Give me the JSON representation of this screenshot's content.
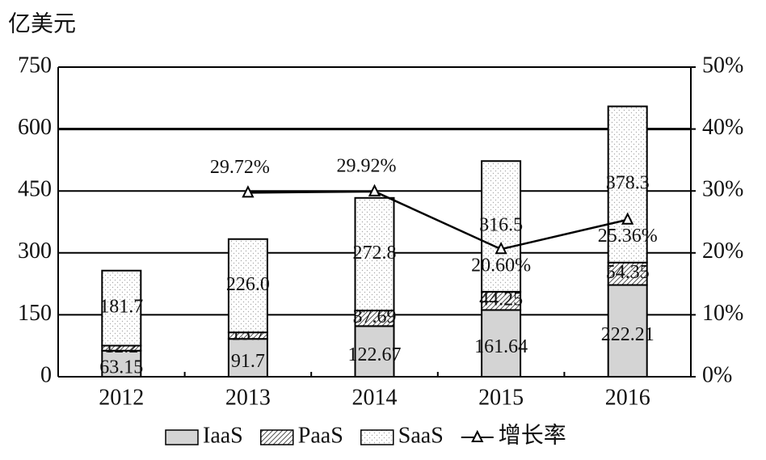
{
  "chart_data": {
    "type": "bar",
    "stacked": true,
    "y_label": "亿美元",
    "categories": [
      "2012",
      "2013",
      "2014",
      "2015",
      "2016"
    ],
    "series": [
      {
        "name": "IaaS",
        "color": "#d4d4d4",
        "pattern": "solid",
        "values": [
          63.15,
          91.7,
          122.67,
          161.64,
          222.21
        ]
      },
      {
        "name": "PaaS",
        "color": "#555555",
        "pattern": "hatch",
        "values": [
          12.2,
          15.7,
          37.69,
          44.25,
          54.35
        ]
      },
      {
        "name": "SaaS",
        "color": "#aaaaaa",
        "pattern": "dots",
        "values": [
          181.7,
          226.0,
          272.8,
          316.5,
          378.3
        ],
        "value_labels": [
          "181.7",
          "226.0",
          "272.8",
          "316.5",
          "378.3"
        ]
      },
      {
        "name": "增长率",
        "color": "#000000",
        "axis": "y2",
        "marker": "triangle",
        "values": [
          null,
          29.72,
          29.92,
          20.6,
          25.36
        ],
        "value_labels": [
          null,
          "29.72%",
          "29.92%",
          "20.60%",
          "25.36%"
        ]
      }
    ],
    "ylim": [
      0,
      750
    ],
    "yticks": [
      0,
      150,
      300,
      450,
      600,
      750
    ],
    "y2lim": [
      0,
      50
    ],
    "y2ticks": [
      {
        "value": 0,
        "label": "0%"
      },
      {
        "value": 10,
        "label": "10%"
      },
      {
        "value": 20,
        "label": "20%"
      },
      {
        "value": 30,
        "label": "30%"
      },
      {
        "value": 40,
        "label": "40%"
      },
      {
        "value": 50,
        "label": "50%"
      }
    ],
    "grid": true
  }
}
